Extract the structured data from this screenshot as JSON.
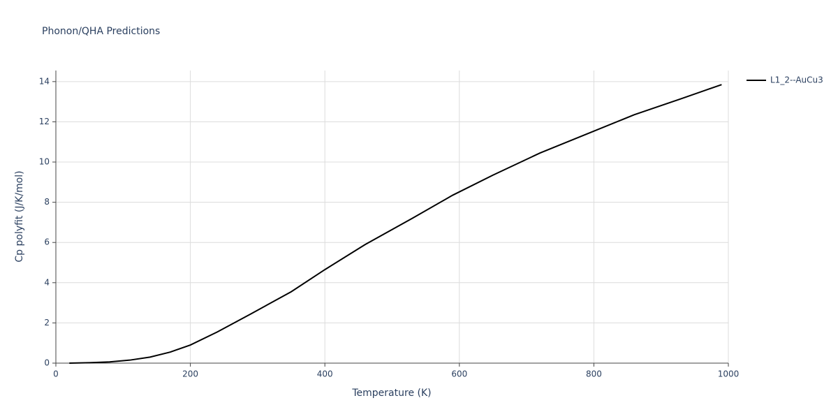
{
  "chart_data": {
    "type": "line",
    "title": "Phonon/QHA Predictions",
    "x_label": "Temperature (K)",
    "y_label": "Cp polyfit (J/K/mol)",
    "x": [
      20,
      50,
      80,
      110,
      140,
      170,
      200,
      240,
      290,
      350,
      400,
      460,
      530,
      590,
      650,
      720,
      790,
      860,
      930,
      990
    ],
    "series": [
      {
        "name": "L1_2--AuCu3",
        "color": "#000000",
        "values": [
          0,
          0.02,
          0.06,
          0.15,
          0.3,
          0.55,
          0.9,
          1.55,
          2.45,
          3.55,
          4.65,
          5.9,
          7.2,
          8.35,
          9.35,
          10.45,
          11.4,
          12.35,
          13.15,
          13.85
        ]
      }
    ],
    "xlim": [
      0,
      1000
    ],
    "xticks": [
      0,
      200,
      400,
      600,
      800,
      1000
    ],
    "ylim": [
      0,
      14.55
    ],
    "yticks": [
      0,
      2,
      4,
      6,
      8,
      10,
      12,
      14
    ],
    "grid": true,
    "legend": "right"
  }
}
